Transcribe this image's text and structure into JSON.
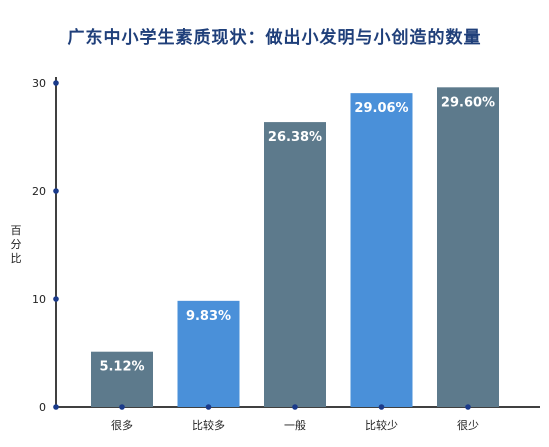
{
  "chart_data": {
    "type": "bar",
    "title": "广东中小学生素质现状：做出小发明与小创造的数量",
    "xlabel": "",
    "ylabel": "百分比",
    "ylim": [
      0,
      30
    ],
    "yticks": [
      0,
      10,
      20,
      30
    ],
    "categories": [
      "很多",
      "比较多",
      "一般",
      "比较少",
      "很少"
    ],
    "values": [
      5.12,
      9.83,
      26.38,
      29.06,
      29.6
    ],
    "data_labels": [
      "5.12%",
      "9.83%",
      "26.38%",
      "29.06%",
      "29.60%"
    ],
    "bar_colors": [
      "#5d7a8c",
      "#4a90d9",
      "#5d7a8c",
      "#4a90d9",
      "#5d7a8c"
    ],
    "axis_color": "#000000",
    "dot_color": "#1a3a8a",
    "grid": false,
    "legend": "none"
  }
}
